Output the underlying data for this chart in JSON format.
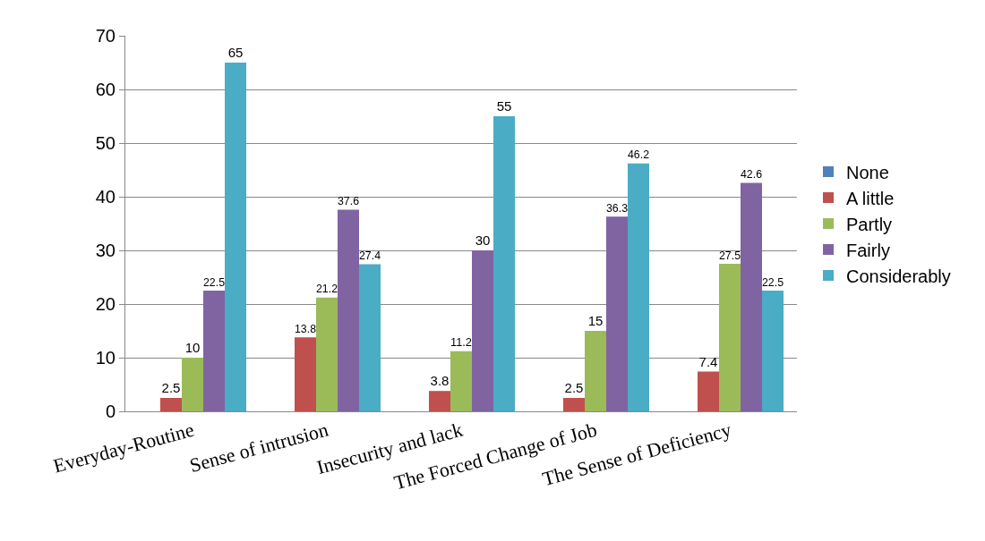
{
  "chart_data": {
    "type": "bar",
    "categories": [
      "Everyday-Routine",
      "Sense of intrusion",
      "Insecurity and lack",
      "The Forced Change of Job",
      "The Sense of Deficiency"
    ],
    "series": [
      {
        "name": "None",
        "color": "#4f81bd",
        "values": [
          0,
          0,
          0,
          0,
          0
        ],
        "value_labels": [
          null,
          null,
          null,
          null,
          null
        ]
      },
      {
        "name": "A little",
        "color": "#c0504d",
        "values": [
          2.5,
          13.8,
          3.8,
          2.5,
          7.4
        ],
        "value_labels": [
          "2.5",
          "13.8",
          "3.8",
          "2.5",
          "7.4"
        ]
      },
      {
        "name": "Partly",
        "color": "#9bbb59",
        "values": [
          10,
          21.2,
          11.2,
          15,
          27.5
        ],
        "value_labels": [
          "10",
          "21.2",
          "11.2",
          "15",
          "27.5"
        ]
      },
      {
        "name": "Fairly",
        "color": "#8064a2",
        "values": [
          22.5,
          37.6,
          30,
          36.3,
          42.6
        ],
        "value_labels": [
          "22.5",
          "37.6",
          "30",
          "36.3",
          "42.6"
        ]
      },
      {
        "name": "Considerably",
        "color": "#4bacc6",
        "values": [
          65,
          27.4,
          55,
          46.2,
          22.5
        ],
        "value_labels": [
          "65",
          "27.4",
          "55",
          "46.2",
          "22.5"
        ]
      }
    ],
    "ylim": [
      0,
      70
    ],
    "yticks": [
      0,
      10,
      20,
      30,
      40,
      50,
      60,
      70
    ],
    "grid": "y",
    "legend": "right"
  }
}
